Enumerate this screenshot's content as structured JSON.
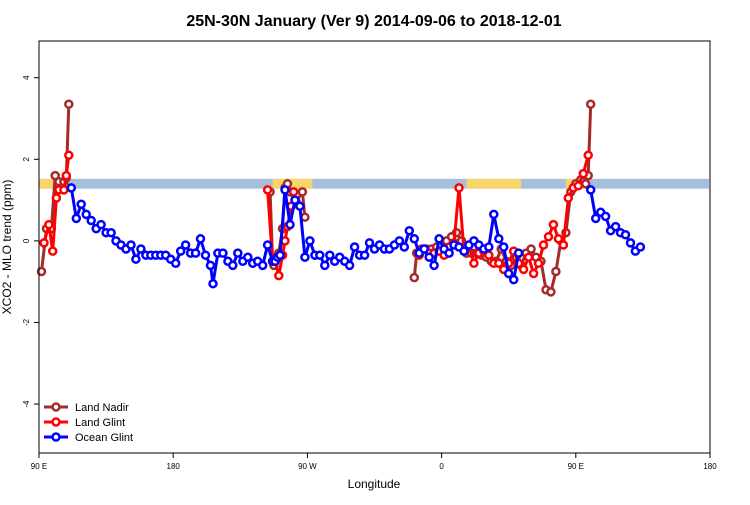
{
  "chart_data": {
    "type": "line",
    "title": "25N-30N January (Ver 9)   2014-09-06 to 2018-12-01",
    "xlabel": "Longitude",
    "ylabel": "XCO2 - MLO trend (ppm)",
    "xlim": [
      -90,
      180
    ],
    "ylim": [
      -5.2,
      4.9
    ],
    "x_ticks": [
      {
        "value": -90,
        "label": "90 E"
      },
      {
        "value": -36,
        "label": "180"
      },
      {
        "value": 18,
        "label": "90 W"
      },
      {
        "value": 72,
        "label": "0"
      },
      {
        "value": 126,
        "label": "90 E"
      },
      {
        "value": 180,
        "label": "180"
      }
    ],
    "y_ticks": [
      {
        "value": -4,
        "label": "-4"
      },
      {
        "value": -2,
        "label": "-2"
      },
      {
        "value": 0,
        "label": "0"
      },
      {
        "value": 2,
        "label": "2"
      },
      {
        "value": 4,
        "label": "4"
      }
    ],
    "grid": false,
    "legend_position": "bottom-left",
    "land_strip": {
      "y_range": [
        1.28,
        1.52
      ],
      "ocean_color": "#a6bddb",
      "land_color": "#f7d56b",
      "land_segments": [
        [
          -90,
          -84
        ],
        [
          4,
          20
        ],
        [
          82,
          104
        ],
        [
          122,
          130
        ]
      ]
    },
    "series": [
      {
        "name": "Land Nadir",
        "color": "#a52a2a",
        "segments": [
          [
            [
              -89,
              -0.75
            ],
            [
              -87,
              0.3
            ],
            [
              -85,
              0.3
            ],
            [
              -83.5,
              1.6
            ],
            [
              -82,
              1.45
            ],
            [
              -81,
              1.3
            ],
            [
              -80,
              1.45
            ],
            [
              -79,
              1.55
            ],
            [
              -78,
              3.35
            ]
          ],
          [
            [
              3,
              1.2
            ],
            [
              4,
              -0.5
            ],
            [
              4.5,
              -0.6
            ],
            [
              6.5,
              -0.3
            ],
            [
              8,
              0.3
            ],
            [
              9,
              1.3
            ],
            [
              10,
              1.4
            ],
            [
              11,
              1.2
            ],
            [
              13.5,
              0.95
            ],
            [
              16,
              1.2
            ],
            [
              17,
              0.58
            ]
          ],
          [
            [
              61,
              -0.9
            ],
            [
              62,
              -0.3
            ],
            [
              64,
              -0.2
            ],
            [
              66,
              -0.2
            ],
            [
              68,
              -0.2
            ],
            [
              70,
              -0.15
            ],
            [
              72,
              -0.1
            ],
            [
              74,
              0.0
            ],
            [
              76,
              0.1
            ],
            [
              78,
              0.2
            ],
            [
              80,
              0.0
            ],
            [
              82,
              -0.3
            ],
            [
              84,
              -0.3
            ],
            [
              86,
              -0.3
            ],
            [
              88,
              -0.35
            ],
            [
              90,
              -0.4
            ],
            [
              92,
              -0.5
            ],
            [
              94,
              -0.5
            ],
            [
              96,
              -0.2
            ],
            [
              98,
              -0.5
            ],
            [
              100,
              -0.6
            ],
            [
              102,
              -0.4
            ],
            [
              104,
              -0.6
            ],
            [
              106,
              -0.3
            ],
            [
              108,
              -0.2
            ],
            [
              110,
              -0.4
            ],
            [
              112,
              -0.5
            ],
            [
              114,
              -1.2
            ],
            [
              116,
              -1.25
            ],
            [
              118,
              -0.75
            ],
            [
              120,
              0.0
            ],
            [
              122,
              0.2
            ],
            [
              124,
              1.2
            ],
            [
              126,
              1.4
            ],
            [
              128,
              1.5
            ],
            [
              130,
              1.4
            ],
            [
              131,
              1.6
            ],
            [
              132,
              3.35
            ]
          ]
        ]
      },
      {
        "name": "Land Glint",
        "color": "#ff0000",
        "segments": [
          [
            [
              -88,
              -0.05
            ],
            [
              -86,
              0.4
            ],
            [
              -84.5,
              -0.25
            ],
            [
              -83,
              1.05
            ],
            [
              -82,
              1.25
            ],
            [
              -80,
              1.25
            ],
            [
              -79,
              1.6
            ],
            [
              -78,
              2.1
            ]
          ],
          [
            [
              2,
              1.25
            ],
            [
              4,
              -0.5
            ],
            [
              5,
              -0.5
            ],
            [
              6.5,
              -0.85
            ],
            [
              8,
              -0.35
            ],
            [
              9,
              0.0
            ],
            [
              10,
              0.35
            ],
            [
              11.5,
              0.85
            ],
            [
              12.5,
              1.2
            ]
          ],
          [
            [
              63,
              -0.35
            ],
            [
              65,
              -0.2
            ],
            [
              67,
              -0.3
            ],
            [
              69,
              -0.3
            ],
            [
              71,
              -0.25
            ],
            [
              73,
              -0.35
            ],
            [
              75,
              -0.15
            ],
            [
              77,
              -0.05
            ],
            [
              79,
              1.3
            ],
            [
              81,
              -0.25
            ],
            [
              83,
              -0.1
            ],
            [
              85,
              -0.55
            ],
            [
              87,
              -0.3
            ],
            [
              89,
              -0.25
            ],
            [
              91,
              -0.35
            ],
            [
              93,
              -0.55
            ],
            [
              95,
              -0.55
            ],
            [
              97,
              -0.7
            ],
            [
              99,
              -0.55
            ],
            [
              101,
              -0.25
            ],
            [
              103,
              -0.55
            ],
            [
              105,
              -0.7
            ],
            [
              107,
              -0.4
            ],
            [
              109,
              -0.8
            ],
            [
              111,
              -0.55
            ],
            [
              113,
              -0.1
            ],
            [
              115,
              0.1
            ],
            [
              117,
              0.4
            ],
            [
              119,
              0.05
            ],
            [
              121,
              -0.1
            ],
            [
              123,
              1.05
            ],
            [
              125,
              1.3
            ],
            [
              127,
              1.35
            ],
            [
              129,
              1.65
            ],
            [
              131,
              2.1
            ]
          ]
        ]
      },
      {
        "name": "Ocean Glint",
        "color": "#0000ff",
        "segments": [
          [
            [
              -77,
              1.3
            ],
            [
              -75,
              0.55
            ],
            [
              -73,
              0.9
            ],
            [
              -71,
              0.65
            ],
            [
              -69,
              0.5
            ],
            [
              -67,
              0.3
            ],
            [
              -65,
              0.4
            ],
            [
              -63,
              0.2
            ],
            [
              -61,
              0.2
            ],
            [
              -59,
              0.0
            ],
            [
              -57,
              -0.1
            ],
            [
              -55,
              -0.2
            ],
            [
              -53,
              -0.1
            ],
            [
              -51,
              -0.45
            ],
            [
              -49,
              -0.2
            ],
            [
              -47,
              -0.35
            ],
            [
              -45,
              -0.35
            ],
            [
              -43,
              -0.35
            ],
            [
              -41,
              -0.35
            ],
            [
              -39,
              -0.35
            ],
            [
              -37,
              -0.45
            ],
            [
              -35,
              -0.55
            ],
            [
              -33,
              -0.25
            ],
            [
              -31,
              -0.1
            ],
            [
              -29,
              -0.3
            ],
            [
              -27,
              -0.3
            ],
            [
              -25,
              0.05
            ],
            [
              -23,
              -0.35
            ],
            [
              -21,
              -0.6
            ],
            [
              -20,
              -1.05
            ],
            [
              -18,
              -0.3
            ],
            [
              -16,
              -0.3
            ],
            [
              -14,
              -0.5
            ],
            [
              -12,
              -0.6
            ],
            [
              -10,
              -0.3
            ],
            [
              -8,
              -0.5
            ],
            [
              -6,
              -0.4
            ],
            [
              -4,
              -0.55
            ],
            [
              -2,
              -0.5
            ],
            [
              0,
              -0.6
            ],
            [
              2,
              -0.1
            ],
            [
              4,
              -0.5
            ],
            [
              5,
              -0.5
            ],
            [
              6,
              -0.4
            ],
            [
              7,
              -0.35
            ],
            [
              9,
              1.25
            ],
            [
              11,
              0.4
            ],
            [
              13,
              1.0
            ],
            [
              15,
              0.85
            ],
            [
              17,
              -0.4
            ],
            [
              19,
              0.0
            ],
            [
              21,
              -0.35
            ],
            [
              23,
              -0.35
            ],
            [
              25,
              -0.6
            ],
            [
              27,
              -0.35
            ],
            [
              29,
              -0.5
            ],
            [
              31,
              -0.4
            ],
            [
              33,
              -0.5
            ],
            [
              35,
              -0.6
            ],
            [
              37,
              -0.15
            ],
            [
              39,
              -0.35
            ],
            [
              41,
              -0.35
            ],
            [
              43,
              -0.05
            ],
            [
              45,
              -0.2
            ],
            [
              47,
              -0.1
            ],
            [
              49,
              -0.2
            ],
            [
              51,
              -0.2
            ],
            [
              53,
              -0.1
            ],
            [
              55,
              0.0
            ],
            [
              57,
              -0.15
            ],
            [
              59,
              0.25
            ],
            [
              61,
              0.05
            ],
            [
              63,
              -0.3
            ],
            [
              65,
              -0.2
            ],
            [
              67,
              -0.4
            ],
            [
              69,
              -0.6
            ],
            [
              71,
              0.05
            ],
            [
              73,
              -0.2
            ],
            [
              75,
              -0.3
            ],
            [
              77,
              -0.1
            ],
            [
              79,
              -0.15
            ],
            [
              81,
              -0.25
            ],
            [
              83,
              -0.1
            ],
            [
              85,
              0.0
            ],
            [
              87,
              -0.1
            ],
            [
              89,
              -0.2
            ],
            [
              91,
              -0.15
            ],
            [
              93,
              0.65
            ],
            [
              95,
              0.05
            ],
            [
              97,
              -0.15
            ],
            [
              99,
              -0.8
            ],
            [
              101,
              -0.95
            ],
            [
              103,
              -0.3
            ]
          ],
          [
            [
              132,
              1.25
            ],
            [
              134,
              0.55
            ],
            [
              136,
              0.7
            ],
            [
              138,
              0.6
            ],
            [
              140,
              0.25
            ],
            [
              142,
              0.35
            ],
            [
              144,
              0.2
            ],
            [
              146,
              0.15
            ],
            [
              148,
              -0.05
            ],
            [
              150,
              -0.25
            ],
            [
              152,
              -0.15
            ]
          ]
        ]
      }
    ]
  },
  "colors": {
    "axis": "#000000",
    "background": "#ffffff"
  }
}
